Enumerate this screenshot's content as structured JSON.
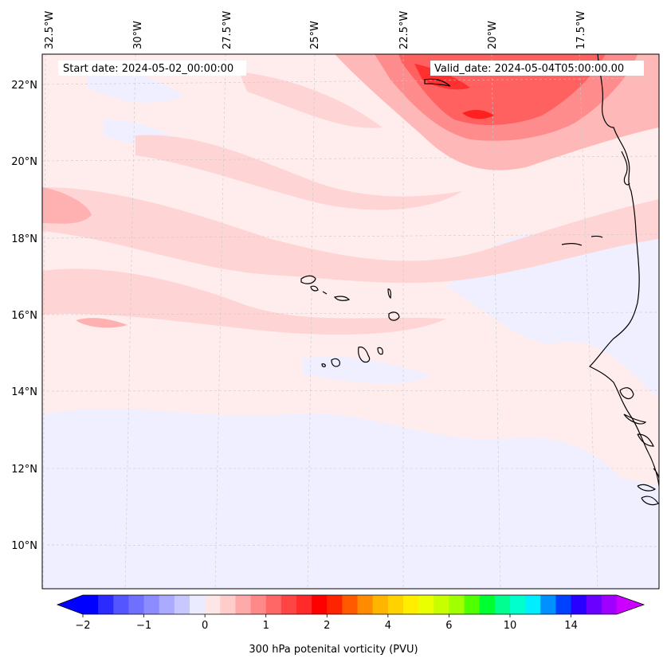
{
  "header": {
    "start_date": "Start date: 2024-05-02_00:00:00",
    "valid_date": "Valid_date: 2024-05-04T05:00:00.00"
  },
  "axes": {
    "lon_labels": [
      "32.5°W",
      "30°W",
      "27.5°W",
      "25°W",
      "22.5°W",
      "20°W",
      "17.5°W"
    ],
    "lat_labels": [
      "22°N",
      "20°N",
      "18°N",
      "16°N",
      "14°N",
      "12°N",
      "10°N"
    ]
  },
  "colorbar": {
    "label": "300 hPa potenital vorticity (PVU)",
    "ticks": [
      "−2",
      "−1",
      "0",
      "1",
      "2",
      "4",
      "6",
      "10",
      "14"
    ],
    "colors": [
      "#0000ff",
      "#2b2bff",
      "#5555ff",
      "#7070ff",
      "#8c8cff",
      "#aaaaff",
      "#c8c8ff",
      "#ebebff",
      "#ffe6e6",
      "#ffcccc",
      "#ffaaaa",
      "#ff8888",
      "#ff6666",
      "#ff4444",
      "#ff2a2a",
      "#ff0000",
      "#ff2400",
      "#ff5a00",
      "#ff8c00",
      "#ffb400",
      "#ffd200",
      "#ffee00",
      "#eaff00",
      "#c8ff00",
      "#a0ff00",
      "#50ff00",
      "#00ff30",
      "#00ff90",
      "#00ffcc",
      "#00eeff",
      "#0090ff",
      "#0040ff",
      "#2800ff",
      "#6a00ff",
      "#a000ff"
    ],
    "under_color": "#0000ff",
    "over_color": "#cc00ff"
  },
  "colors": {
    "background": "#ffeded",
    "frame": "#000000"
  }
}
